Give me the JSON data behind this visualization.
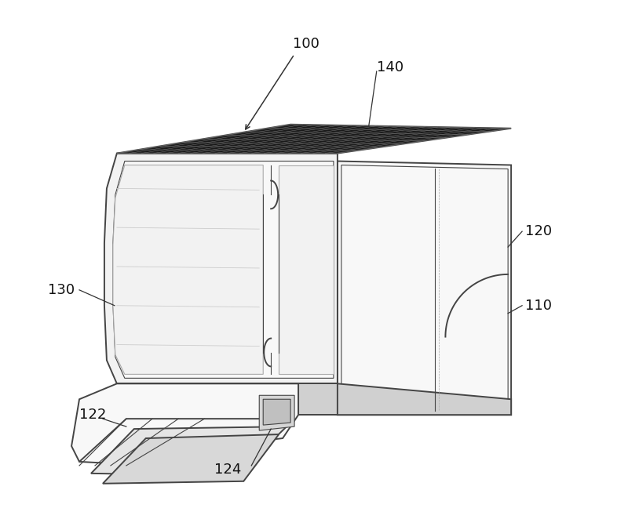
{
  "background_color": "#ffffff",
  "line_color": "#444444",
  "light_fill": "#f2f2f2",
  "lighter_fill": "#f8f8f8",
  "medium_fill": "#d0d0d0",
  "dark_fill": "#555555",
  "grid_fill": "#1a1a1a",
  "side_fill": "#e8e8e8",
  "label_fontsize": 13,
  "figsize": [
    8.0,
    6.62
  ],
  "dpi": 100
}
